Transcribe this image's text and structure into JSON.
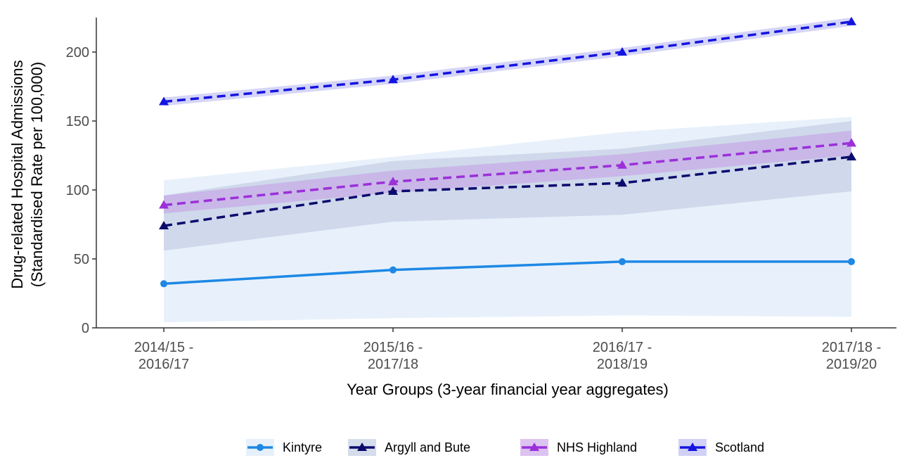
{
  "chart_data": {
    "type": "line",
    "y_label": [
      "Drug-related Hospital Admissions",
      "(Standardised Rate per 100,000)"
    ],
    "x_label": "Year Groups (3-year financial year aggregates)",
    "categories": [
      [
        "2014/15 -",
        "2016/17"
      ],
      [
        "2015/16 -",
        "2017/18"
      ],
      [
        "2016/17 -",
        "2018/19"
      ],
      [
        "2017/18 -",
        "2019/20"
      ]
    ],
    "ylim": [
      0,
      225
    ],
    "yticks": [
      0,
      50,
      100,
      150,
      200
    ],
    "grid": false,
    "legend": "bottom",
    "series": [
      {
        "name": "Kintyre",
        "color": "#1e88e5",
        "band_color": "#d6e6f8",
        "linestyle": "solid",
        "marker": "circle",
        "values": [
          32,
          42,
          48,
          48
        ],
        "lower": [
          4,
          7,
          9,
          8
        ],
        "upper": [
          107,
          124,
          142,
          153
        ]
      },
      {
        "name": "Argyll and Bute",
        "color": "#0b0b6e",
        "band_color": "#b9c4de",
        "linestyle": "dashed",
        "marker": "triangle",
        "values": [
          74,
          99,
          105,
          124
        ],
        "lower": [
          56,
          77,
          82,
          99
        ],
        "upper": [
          96,
          121,
          130,
          150
        ]
      },
      {
        "name": "NHS Highland",
        "color": "#9b30d9",
        "band_color": "#c49be6",
        "linestyle": "dashed",
        "marker": "triangle",
        "values": [
          89,
          106,
          118,
          134
        ],
        "lower": [
          83,
          98,
          110,
          125
        ],
        "upper": [
          96,
          114,
          126,
          143
        ]
      },
      {
        "name": "Scotland",
        "color": "#1414e0",
        "band_color": "#b3b3f2",
        "linestyle": "dashed",
        "marker": "triangle",
        "values": [
          164,
          180,
          200,
          222
        ],
        "lower": [
          161,
          177,
          197,
          219
        ],
        "upper": [
          167,
          183,
          203,
          225
        ]
      }
    ]
  }
}
